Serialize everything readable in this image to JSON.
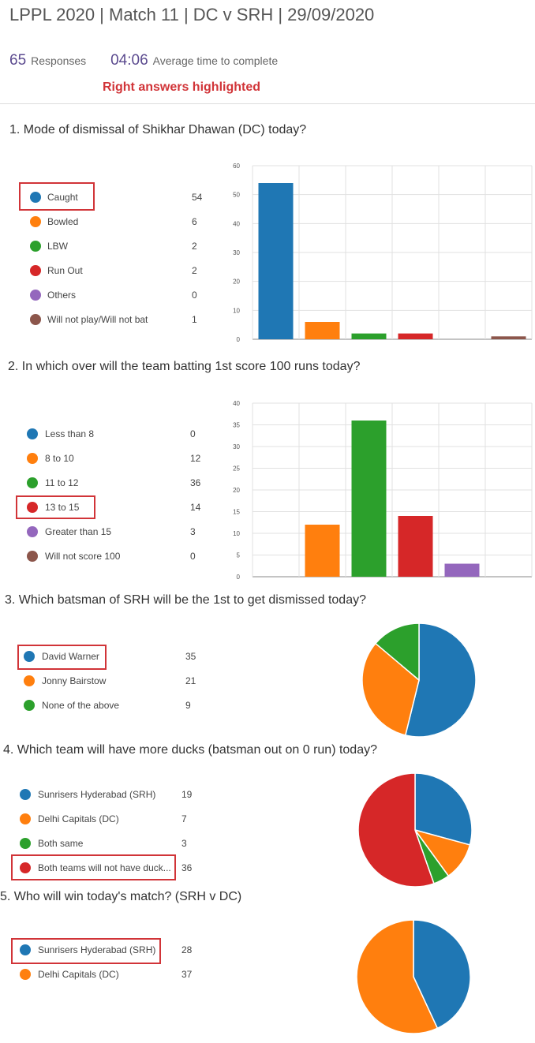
{
  "title": "LPPL 2020 | Match 11 | DC v SRH | 29/09/2020",
  "summary": {
    "responses_count": "65",
    "responses_label": "Responses",
    "avg_time": "04:06",
    "avg_time_label": "Average time to complete"
  },
  "note": "Right answers highlighted",
  "colors": {
    "blue": "#1f77b4",
    "orange": "#ff7f0e",
    "green": "#2ca02c",
    "red": "#d62728",
    "purple": "#9467bd",
    "brown": "#8c564b",
    "highlight": "#d13438"
  },
  "chart_data": [
    {
      "type": "bar",
      "question": "1.  Mode of dismissal of Shikhar Dhawan (DC) today?",
      "categories": [
        "Caught",
        "Bowled",
        "LBW",
        "Run Out",
        "Others",
        "Will not play/Will not bat"
      ],
      "values": [
        54,
        6,
        2,
        2,
        0,
        1
      ],
      "counts": [
        "54",
        "6",
        "2",
        "2",
        "0",
        "1"
      ],
      "colors": [
        "#1f77b4",
        "#ff7f0e",
        "#2ca02c",
        "#d62728",
        "#9467bd",
        "#8c564b"
      ],
      "ylim": [
        0,
        60
      ],
      "yticks": [
        "0",
        "10",
        "20",
        "30",
        "40",
        "50",
        "60"
      ],
      "grid": true,
      "highlighted": 0
    },
    {
      "type": "bar",
      "question": "2.  In which over will the team batting 1st score 100 runs today?",
      "categories": [
        "Less than 8",
        "8 to 10",
        "11 to 12",
        "13 to 15",
        "Greater than 15",
        "Will not score 100"
      ],
      "values": [
        0,
        12,
        36,
        14,
        3,
        0
      ],
      "counts": [
        "0",
        "12",
        "36",
        "14",
        "3",
        "0"
      ],
      "colors": [
        "#1f77b4",
        "#ff7f0e",
        "#2ca02c",
        "#d62728",
        "#9467bd",
        "#8c564b"
      ],
      "ylim": [
        0,
        40
      ],
      "yticks": [
        "0",
        "5",
        "10",
        "15",
        "20",
        "25",
        "30",
        "35",
        "40"
      ],
      "grid": true,
      "highlighted": 3
    },
    {
      "type": "pie",
      "question": "3.  Which batsman of SRH will be the 1st to get dismissed today?",
      "categories": [
        "David Warner",
        "Jonny Bairstow",
        "None of the above"
      ],
      "values": [
        35,
        21,
        9
      ],
      "counts": [
        "35",
        "21",
        "9"
      ],
      "colors": [
        "#1f77b4",
        "#ff7f0e",
        "#2ca02c"
      ],
      "highlighted": 0
    },
    {
      "type": "pie",
      "question": "4.  Which team will have more ducks (batsman out on 0 run) today?",
      "categories": [
        "Sunrisers Hyderabad (SRH)",
        "Delhi Capitals (DC)",
        "Both same",
        "Both teams will not have duck..."
      ],
      "values": [
        19,
        7,
        3,
        36
      ],
      "counts": [
        "19",
        "7",
        "3",
        "36"
      ],
      "colors": [
        "#1f77b4",
        "#ff7f0e",
        "#2ca02c",
        "#d62728"
      ],
      "highlighted": 3
    },
    {
      "type": "pie",
      "question": "5.  Who will win today's match? (SRH v DC)",
      "categories": [
        "Sunrisers Hyderabad (SRH)",
        "Delhi Capitals (DC)"
      ],
      "values": [
        28,
        37
      ],
      "counts": [
        "28",
        "37"
      ],
      "colors": [
        "#1f77b4",
        "#ff7f0e"
      ],
      "highlighted": 0
    }
  ]
}
